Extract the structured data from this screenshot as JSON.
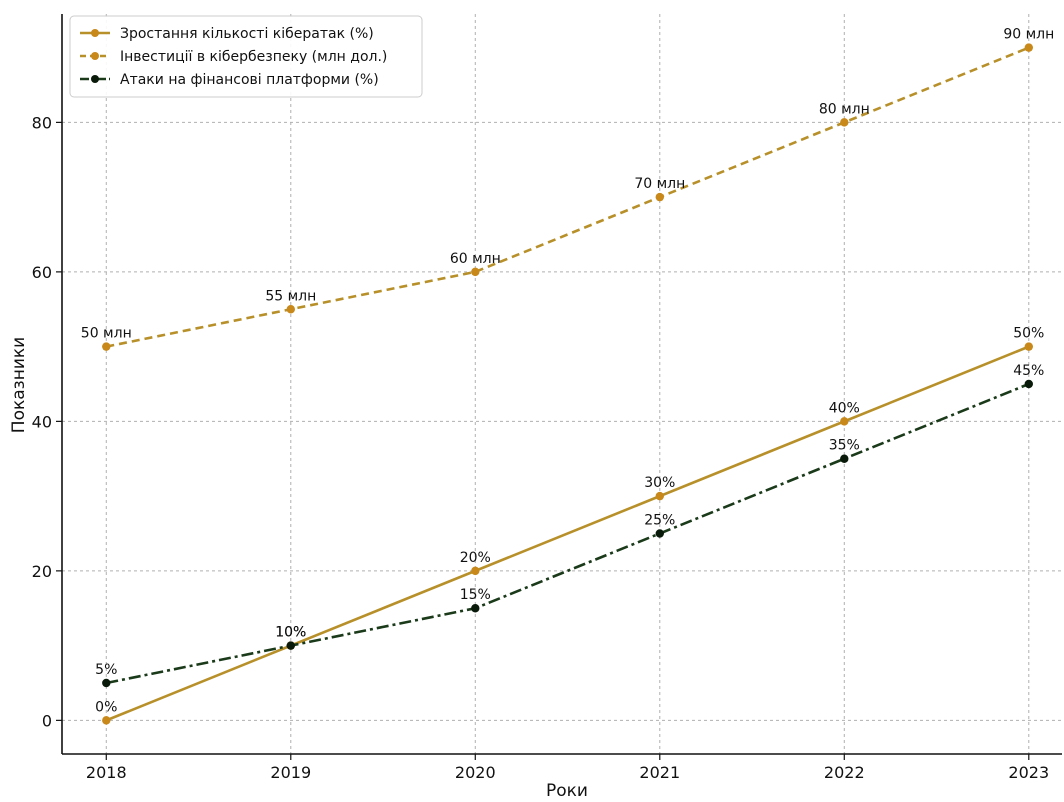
{
  "chart_data": {
    "type": "line",
    "title": "",
    "xlabel": "Роки",
    "ylabel": "Показники",
    "x": [
      2018,
      2019,
      2020,
      2021,
      2022,
      2023
    ],
    "xlim": [
      2017.76,
      2023.18
    ],
    "ylim": [
      -4.5,
      94.5
    ],
    "yticks": [
      0,
      20,
      40,
      60,
      80
    ],
    "grid": true,
    "legend_position": "top-left",
    "series": [
      {
        "name": "Зростання кількості кібератак (%)",
        "values": [
          0,
          10,
          20,
          30,
          40,
          50
        ],
        "labels": [
          "0%",
          "10%",
          "20%",
          "30%",
          "40%",
          "50%"
        ],
        "color": "#b8902a",
        "marker_color": "#c8881a",
        "line_style": "solid"
      },
      {
        "name": "Інвестиції в кібербезпеку (млн дол.)",
        "values": [
          50,
          55,
          60,
          70,
          80,
          90
        ],
        "labels": [
          "50 млн",
          "55 млн",
          "60 млн",
          "70 млн",
          "80 млн",
          "90 млн"
        ],
        "color": "#b8902a",
        "marker_color": "#c8881a",
        "line_style": "dashed"
      },
      {
        "name": "Атаки на фінансові платформи (%)",
        "values": [
          5,
          10,
          15,
          25,
          35,
          45
        ],
        "labels": [
          "5%",
          "10%",
          "15%",
          "25%",
          "35%",
          "45%"
        ],
        "color": "#1a3a1a",
        "marker_color": "#0a1a0a",
        "line_style": "dashdot"
      }
    ]
  }
}
